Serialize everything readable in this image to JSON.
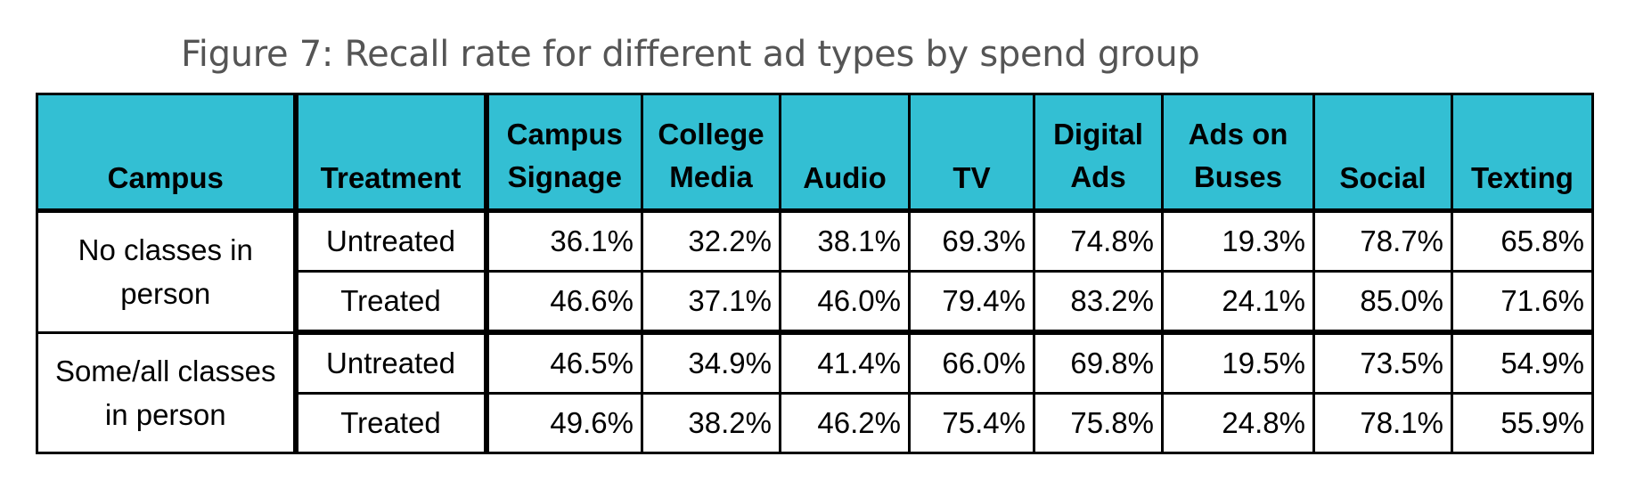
{
  "caption": "Figure 7: Recall rate for different ad types by spend group",
  "table": {
    "header_bg_color": "#33bfd3",
    "columns": [
      {
        "line1": "",
        "line2": "Campus"
      },
      {
        "line1": "",
        "line2": "Treatment"
      },
      {
        "line1": "Campus",
        "line2": "Signage"
      },
      {
        "line1": "College",
        "line2": "Media"
      },
      {
        "line1": "",
        "line2": "Audio"
      },
      {
        "line1": "",
        "line2": "TV"
      },
      {
        "line1": "Digital",
        "line2": "Ads"
      },
      {
        "line1": "Ads on",
        "line2": "Buses"
      },
      {
        "line1": "",
        "line2": "Social"
      },
      {
        "line1": "",
        "line2": "Texting"
      }
    ],
    "groups": [
      {
        "campus_line1": "No classes in",
        "campus_line2": "person",
        "rows": [
          {
            "treatment": "Untreated",
            "values": [
              "36.1%",
              "32.2%",
              "38.1%",
              "69.3%",
              "74.8%",
              "19.3%",
              "78.7%",
              "65.8%"
            ]
          },
          {
            "treatment": "Treated",
            "values": [
              "46.6%",
              "37.1%",
              "46.0%",
              "79.4%",
              "83.2%",
              "24.1%",
              "85.0%",
              "71.6%"
            ]
          }
        ]
      },
      {
        "campus_line1": "Some/all classes",
        "campus_line2": "in person",
        "rows": [
          {
            "treatment": "Untreated",
            "values": [
              "46.5%",
              "34.9%",
              "41.4%",
              "66.0%",
              "69.8%",
              "19.5%",
              "73.5%",
              "54.9%"
            ]
          },
          {
            "treatment": "Treated",
            "values": [
              "49.6%",
              "38.2%",
              "46.2%",
              "75.4%",
              "75.8%",
              "24.8%",
              "78.1%",
              "55.9%"
            ]
          }
        ]
      }
    ]
  },
  "chart_data": {
    "type": "table",
    "title": "Figure 7: Recall rate for different ad types by spend group",
    "row_dimensions": [
      "Campus",
      "Treatment"
    ],
    "categories": [
      "Campus Signage",
      "College Media",
      "Audio",
      "TV",
      "Digital Ads",
      "Ads on Buses",
      "Social",
      "Texting"
    ],
    "series": [
      {
        "campus": "No classes in person",
        "treatment": "Untreated",
        "values": [
          36.1,
          32.2,
          38.1,
          69.3,
          74.8,
          19.3,
          78.7,
          65.8
        ]
      },
      {
        "campus": "No classes in person",
        "treatment": "Treated",
        "values": [
          46.6,
          37.1,
          46.0,
          79.4,
          83.2,
          24.1,
          85.0,
          71.6
        ]
      },
      {
        "campus": "Some/all classes in person",
        "treatment": "Untreated",
        "values": [
          46.5,
          34.9,
          41.4,
          66.0,
          69.8,
          19.5,
          73.5,
          54.9
        ]
      },
      {
        "campus": "Some/all classes in person",
        "treatment": "Treated",
        "values": [
          49.6,
          38.2,
          46.2,
          75.4,
          75.8,
          24.8,
          78.1,
          55.9
        ]
      }
    ],
    "unit": "%"
  }
}
